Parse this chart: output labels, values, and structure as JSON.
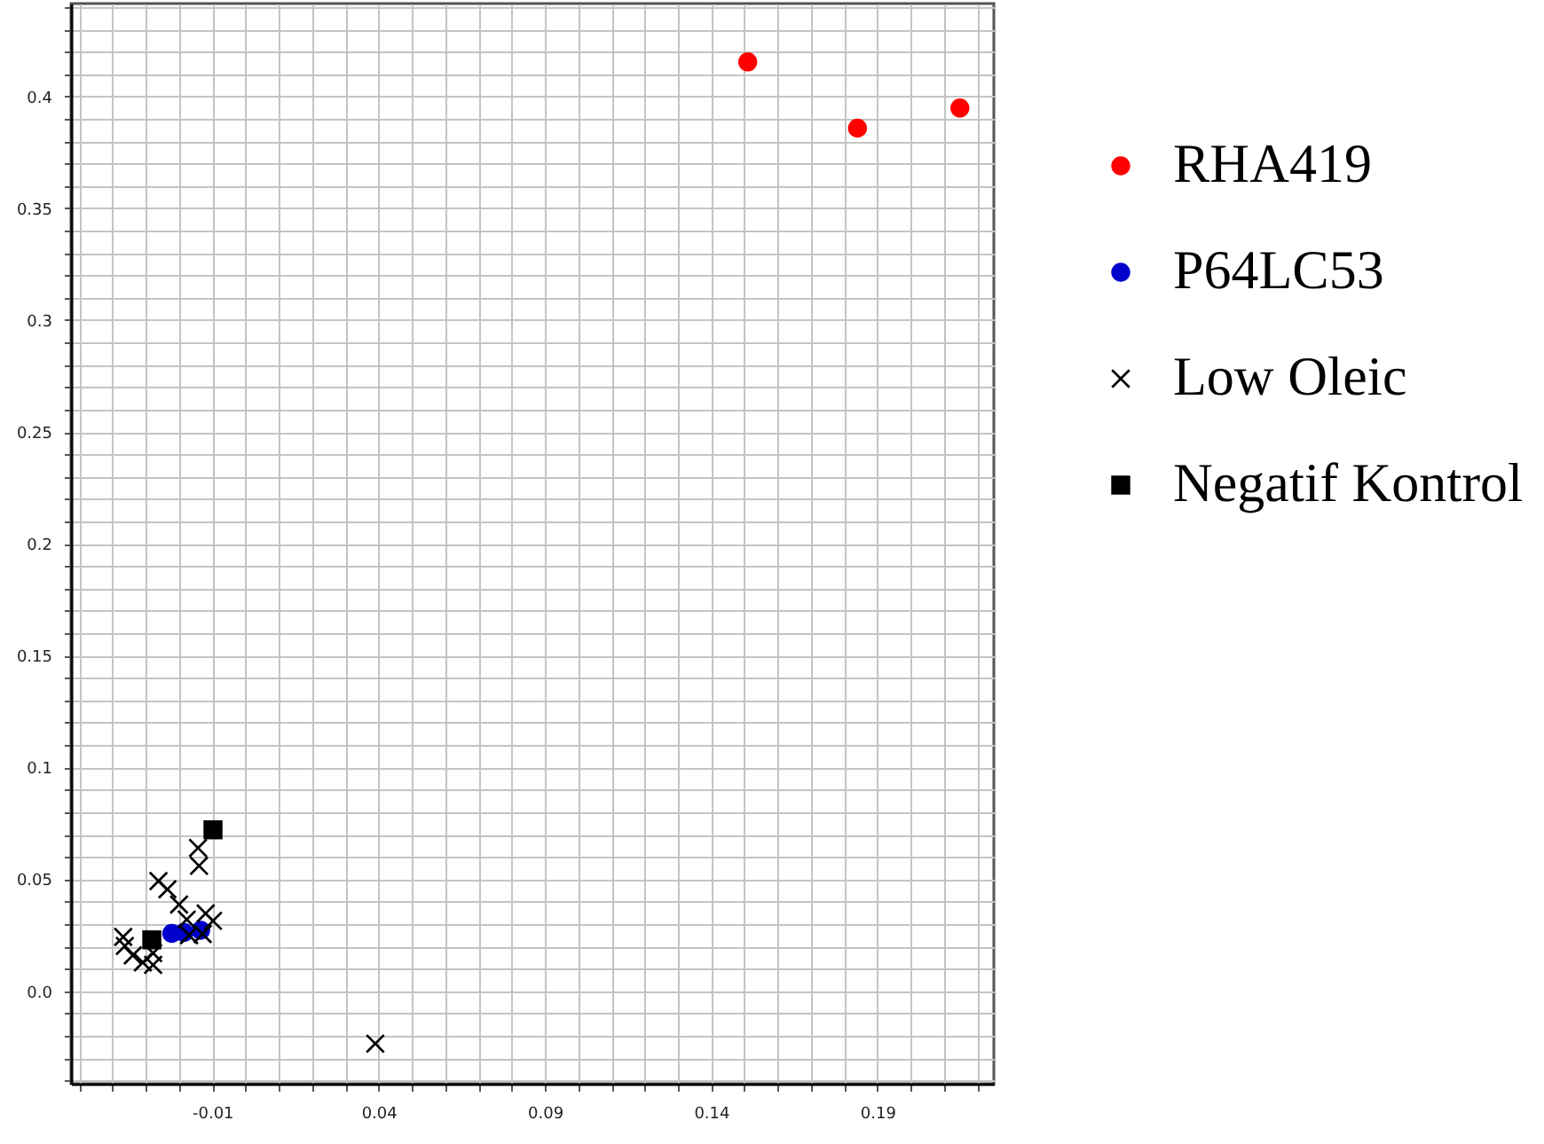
{
  "chart_data": {
    "type": "scatter",
    "grid": true,
    "legend": "top right",
    "xlim": [
      -0.0525,
      0.225
    ],
    "ylim": [
      -0.0414,
      0.4415
    ],
    "xticks": [
      {
        "value": -0.05,
        "label": null
      },
      {
        "value": -0.04,
        "label": null
      },
      {
        "value": -0.03,
        "label": null
      },
      {
        "value": -0.02,
        "label": null
      },
      -0.01,
      {
        "value": 0,
        "label": null
      },
      {
        "value": 0.01,
        "label": null
      },
      {
        "value": 0.02,
        "label": null
      },
      {
        "value": 0.03,
        "label": null
      },
      0.04,
      {
        "value": 0.05,
        "label": null
      },
      {
        "value": 0.06,
        "label": null
      },
      {
        "value": 0.07,
        "label": null
      },
      {
        "value": 0.08,
        "label": null
      },
      0.09,
      {
        "value": 0.1,
        "label": null
      },
      {
        "value": 0.11,
        "label": null
      },
      {
        "value": 0.12,
        "label": null
      },
      {
        "value": 0.13,
        "label": null
      },
      0.14,
      {
        "value": 0.15,
        "label": null
      },
      {
        "value": 0.16,
        "label": null
      },
      {
        "value": 0.17,
        "label": null
      },
      {
        "value": 0.18,
        "label": null
      },
      0.19,
      {
        "value": 0.2,
        "label": null
      },
      {
        "value": 0.21,
        "label": null
      },
      {
        "value": 0.22,
        "label": null
      }
    ],
    "yticks": [
      {
        "value": -0.04,
        "label": null
      },
      {
        "value": -0.03,
        "label": null
      },
      {
        "value": -0.02,
        "label": null
      },
      {
        "value": -0.01,
        "label": null
      },
      {
        "value": 0,
        "label": "0.0"
      },
      {
        "value": 0.01,
        "label": null
      },
      {
        "value": 0.02,
        "label": null
      },
      {
        "value": 0.03,
        "label": null
      },
      {
        "value": 0.04,
        "label": null
      },
      0.05,
      {
        "value": 0.06,
        "label": null
      },
      {
        "value": 0.07,
        "label": null
      },
      {
        "value": 0.08,
        "label": null
      },
      {
        "value": 0.09,
        "label": null
      },
      0.1,
      {
        "value": 0.11,
        "label": null
      },
      {
        "value": 0.12,
        "label": null
      },
      {
        "value": 0.13,
        "label": null
      },
      {
        "value": 0.14,
        "label": null
      },
      0.15,
      {
        "value": 0.16,
        "label": null
      },
      {
        "value": 0.17,
        "label": null
      },
      {
        "value": 0.18,
        "label": null
      },
      {
        "value": 0.19,
        "label": null
      },
      0.2,
      {
        "value": 0.21,
        "label": null
      },
      {
        "value": 0.22,
        "label": null
      },
      {
        "value": 0.23,
        "label": null
      },
      {
        "value": 0.24,
        "label": null
      },
      0.25,
      {
        "value": 0.26,
        "label": null
      },
      {
        "value": 0.27,
        "label": null
      },
      {
        "value": 0.28,
        "label": null
      },
      {
        "value": 0.29,
        "label": null
      },
      0.3,
      {
        "value": 0.31,
        "label": null
      },
      {
        "value": 0.32,
        "label": null
      },
      {
        "value": 0.33,
        "label": null
      },
      {
        "value": 0.34,
        "label": null
      },
      0.35,
      {
        "value": 0.36,
        "label": null
      },
      {
        "value": 0.37,
        "label": null
      },
      {
        "value": 0.38,
        "label": null
      },
      {
        "value": 0.39,
        "label": null
      },
      0.4,
      {
        "value": 0.41,
        "label": null
      },
      {
        "value": 0.42,
        "label": null
      },
      {
        "value": 0.43,
        "label": null
      },
      {
        "value": 0.44,
        "label": null
      }
    ],
    "series": [
      {
        "name": "RHA419",
        "color": "#ff0000",
        "marker": "circle",
        "x": [
          0.151,
          0.184,
          0.2148
        ],
        "values": [
          0.4154,
          0.3858,
          0.3948
        ]
      },
      {
        "name": "P64LC53",
        "color": "#0000cc",
        "marker": "circle",
        "x": [
          -0.0222,
          -0.0185,
          -0.0135
        ],
        "values": [
          0.0258,
          0.0262,
          0.0272
        ]
      },
      {
        "name": "Low Oleic",
        "color": "#000000",
        "marker": "cross",
        "x": [
          -0.0368,
          -0.0363,
          -0.0339,
          -0.0309,
          -0.0278,
          -0.0278,
          -0.0262,
          -0.0235,
          -0.02,
          -0.0177,
          -0.0143,
          -0.014,
          -0.012,
          -0.0098,
          -0.017,
          -0.0129,
          0.039
        ],
        "values": [
          0.0242,
          0.0202,
          0.016,
          0.0128,
          0.0117,
          0.017,
          0.0492,
          0.0455,
          0.0387,
          0.032,
          0.064,
          0.056,
          0.0347,
          0.0314,
          0.025,
          0.0255,
          -0.0235
        ]
      },
      {
        "name": "Negatif Kontrol",
        "color": "#000000",
        "marker": "square",
        "x": [
          -0.0098,
          -0.0282
        ],
        "values": [
          0.0721,
          0.0229
        ]
      }
    ]
  }
}
